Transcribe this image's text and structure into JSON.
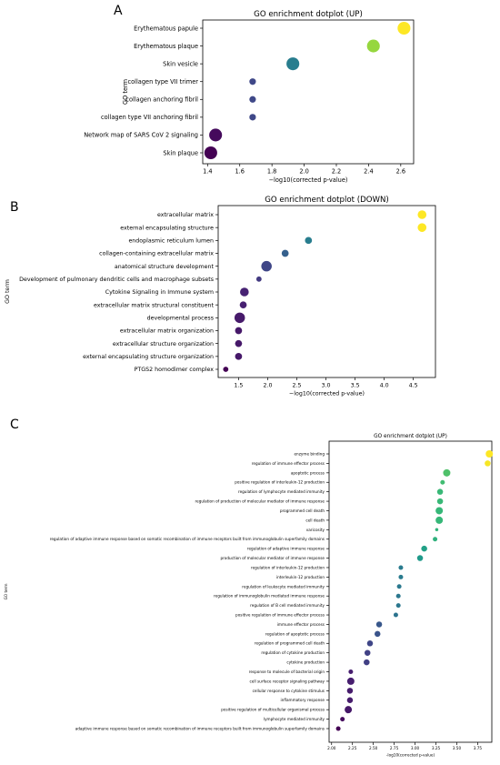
{
  "chart_data": [
    {
      "type": "scatter",
      "panel_label": "A",
      "title": "GO enrichment dotplot (UP)",
      "xlabel": "−log10(corrected p-value)",
      "ylabel": "GO term",
      "xlim": [
        1.37,
        2.68
      ],
      "xticks": [
        1.4,
        1.6,
        1.8,
        2.0,
        2.2,
        2.4,
        2.6
      ],
      "xtick_labels": [
        "1.4",
        "1.6",
        "1.8",
        "2.0",
        "2.2",
        "2.4",
        "2.6"
      ],
      "grid": false,
      "colormap": "viridis",
      "terms": [
        "Erythematous papule",
        "Erythematous plaque",
        "Skin vesicle",
        "collagen type VII trimer",
        "collagen anchoring fibril",
        "collagen type VII anchoring fibril",
        "Network map of SARS CoV 2 signaling",
        "Skin plaque"
      ],
      "x": [
        2.62,
        2.43,
        1.93,
        1.68,
        1.68,
        1.68,
        1.45,
        1.42
      ],
      "size": [
        5,
        5,
        5,
        2,
        2,
        2,
        5,
        5
      ]
    },
    {
      "type": "scatter",
      "panel_label": "B",
      "title": "GO enrichment dotplot (DOWN)",
      "xlabel": "−log10(corrected p-value)",
      "ylabel": "GO term",
      "xlim": [
        1.15,
        4.88
      ],
      "xticks": [
        1.5,
        2.0,
        2.5,
        3.0,
        3.5,
        4.0,
        4.5
      ],
      "xtick_labels": [
        "1.5",
        "2.0",
        "2.5",
        "3.0",
        "3.5",
        "4.0",
        "4.5"
      ],
      "grid": false,
      "colormap": "viridis",
      "terms": [
        "extracellular matrix",
        "external encapsulating structure",
        "endoplasmic reticulum lumen",
        "collagen-containing extracellular matrix",
        "anatomical structure development",
        "Development of pulmonary dendritic cells and macrophage subsets",
        "Cytokine Signaling in Immune system",
        "extracellular matrix structural constituent",
        "developmental process",
        "extracellular matrix organization",
        "extracellular structure organization",
        "external encapsulating structure organization",
        "PTGS2 homodimer complex"
      ],
      "x": [
        4.65,
        4.65,
        2.7,
        2.3,
        1.98,
        1.85,
        1.6,
        1.58,
        1.52,
        1.5,
        1.5,
        1.5,
        1.28
      ],
      "size": [
        4,
        4,
        3,
        3,
        5,
        2,
        4,
        3,
        5,
        3,
        3,
        3,
        2
      ]
    },
    {
      "type": "scatter",
      "panel_label": "C",
      "title": "GO enrichment dotplot (UP)",
      "xlabel": "-log10(corrected p-value)",
      "ylabel": "GO term",
      "xlim": [
        1.97,
        3.92
      ],
      "xticks": [
        2.0,
        2.25,
        2.5,
        2.75,
        3.0,
        3.25,
        3.5,
        3.75
      ],
      "xtick_labels": [
        "2.00",
        "2.25",
        "2.50",
        "2.75",
        "3.00",
        "3.25",
        "3.50",
        "3.75"
      ],
      "grid": false,
      "colormap": "viridis",
      "terms": [
        "enzyme binding",
        "regulation of immune effector process",
        "apoptotic process",
        "positive regulation of interleukin-12 production",
        "regulation of lymphocyte mediated immunity",
        "regulation of production of molecular mediator of immune response",
        "programmed cell death",
        "cell death",
        "varicosity",
        "regulation of adaptive immune response based on somatic recombination of immune receptors built from immunoglobulin superfamily domains",
        "regulation of adaptive immune response",
        "production of molecular mediator of immune response",
        "regulation of interleukin-12 production",
        "interleukin-12 production",
        "regulation of leukocyte mediated immunity",
        "regulation of immunoglobulin mediated immune response",
        "regulation of B cell mediated immunity",
        "positive regulation of immune effector process",
        "immune effector process",
        "regulation of apoptotic process",
        "regulation of programmed cell death",
        "regulation of cytokine production",
        "cytokine production",
        "response to molecule of bacterial origin",
        "cell surface receptor signaling pathway",
        "cellular response to cytokine stimulus",
        "inflammatory response",
        "positive regulation of multicellular organismal process",
        "lymphocyte mediated immunity",
        "adaptive immune response based on somatic recombination of immune receptors built from immunoglobulin superfamily domains"
      ],
      "x": [
        3.89,
        3.87,
        3.38,
        3.33,
        3.3,
        3.3,
        3.29,
        3.29,
        3.26,
        3.24,
        3.11,
        3.06,
        2.83,
        2.83,
        2.81,
        2.8,
        2.8,
        2.77,
        2.57,
        2.55,
        2.46,
        2.43,
        2.42,
        2.23,
        2.23,
        2.22,
        2.22,
        2.2,
        2.13,
        2.08
      ],
      "size": [
        4,
        3,
        4,
        2,
        3,
        3,
        4,
        4,
        1,
        2,
        3,
        3,
        2,
        2,
        2,
        2,
        2,
        2,
        3,
        3,
        3,
        3,
        3,
        2,
        4,
        3,
        3,
        4,
        2,
        2
      ]
    }
  ]
}
